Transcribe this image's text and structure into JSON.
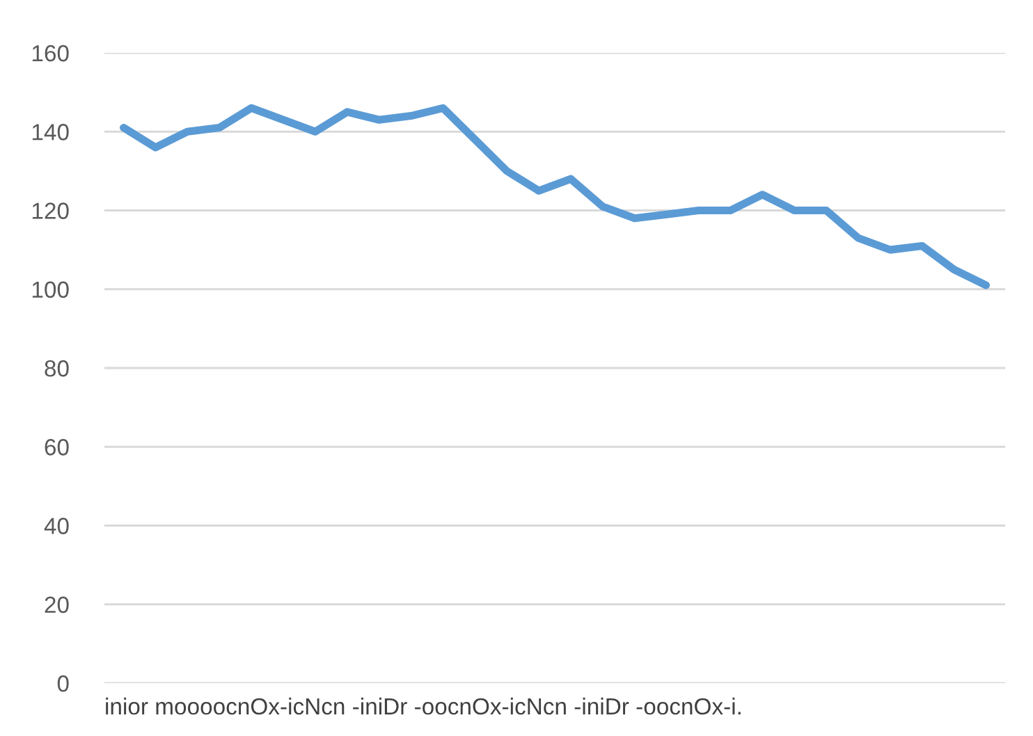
{
  "chart_data": {
    "type": "line",
    "xlabel": "inior moooocnOx-icNcn -iniDr -oocnOx-icNcn -iniDr -oocnOx-i.",
    "categories": [
      null,
      null,
      null,
      null,
      null,
      null,
      null,
      null,
      null,
      null,
      null,
      null,
      null,
      null,
      null,
      null,
      null,
      null,
      null,
      null,
      null,
      null,
      null,
      null,
      null,
      null,
      null,
      null
    ],
    "series": [
      {
        "color": "#5b9bd5",
        "values": [
          141,
          136,
          140,
          141,
          146,
          143,
          140,
          145,
          143,
          144,
          146,
          138,
          130,
          125,
          128,
          121,
          118,
          119,
          120,
          120,
          124,
          120,
          120,
          113,
          110,
          111,
          105,
          101
        ]
      }
    ],
    "ylim": [
      0,
      160
    ],
    "yticks": [
      0,
      20,
      40,
      60,
      80,
      100,
      120,
      140,
      160
    ],
    "grid": "y",
    "legend": false,
    "marker": "none",
    "line_style": "solid"
  }
}
